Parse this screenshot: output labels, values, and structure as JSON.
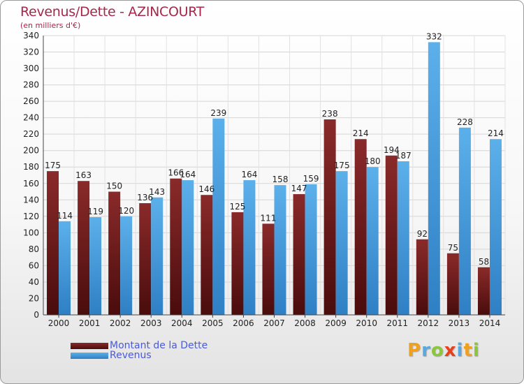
{
  "chart_data": {
    "type": "bar",
    "title": "Revenus/Dette - AZINCOURT",
    "subtitle": "(en milliers d'€)",
    "xlabel": "",
    "ylabel": "",
    "ylim": [
      0,
      340
    ],
    "ytick_step": 20,
    "grid": true,
    "legend_position": "bottom-left",
    "categories": [
      "2000",
      "2001",
      "2002",
      "2003",
      "2004",
      "2005",
      "2006",
      "2007",
      "2008",
      "2009",
      "2010",
      "2011",
      "2012",
      "2013",
      "2014"
    ],
    "series": [
      {
        "name": "Montant de la Dette",
        "color": "#7a1f1f",
        "values": [
          175,
          163,
          150,
          136,
          166,
          146,
          125,
          111,
          147,
          238,
          214,
          194,
          92,
          75,
          58
        ]
      },
      {
        "name": "Revenus",
        "color": "#4da3e2",
        "values": [
          114,
          119,
          120,
          143,
          164,
          239,
          164,
          158,
          159,
          175,
          180,
          187,
          332,
          228,
          214
        ]
      }
    ]
  },
  "brand": {
    "letters": [
      "P",
      "r",
      "o",
      "x",
      "i",
      "t",
      "i"
    ],
    "colors": [
      "#f0a020",
      "#5aa8e0",
      "#8cc63f",
      "#e8401c",
      "#5aa8e0",
      "#f0a020",
      "#8cc63f"
    ]
  }
}
